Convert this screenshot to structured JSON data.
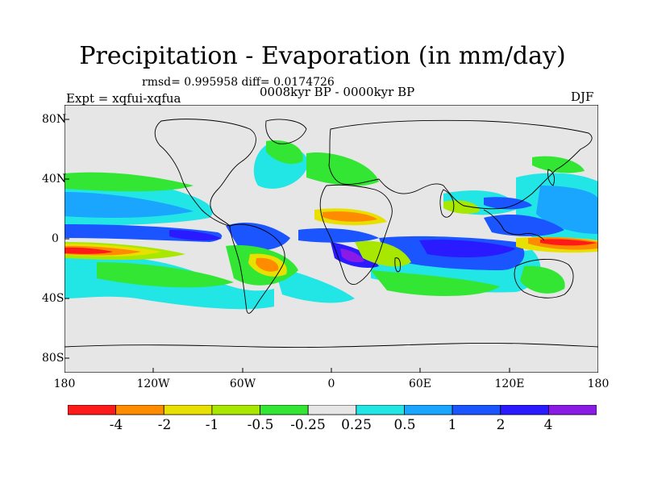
{
  "title": "Precipitation - Evaporation (in mm/day)",
  "stats": "rmsd= 0.995958  diff= 0.0174726",
  "experiment": "Expt = xqfui-xqfua",
  "period": "0008kyr BP - 0000kyr BP",
  "season": "DJF",
  "lat_labels": [
    "80N",
    "40N",
    "0",
    "40S",
    "80S"
  ],
  "lon_labels": [
    "180",
    "120W",
    "60W",
    "0",
    "60E",
    "120E",
    "180"
  ],
  "colorbar": {
    "labels": [
      "-4",
      "-2",
      "-1",
      "-0.5",
      "-0.25",
      "0.25",
      "0.5",
      "1",
      "2",
      "4"
    ],
    "colors": [
      "#ff1a1a",
      "#ff8c00",
      "#e8e000",
      "#a8e800",
      "#33e633",
      "#e6e6e6",
      "#22e5e5",
      "#1aa5ff",
      "#1a55ff",
      "#2a1aff",
      "#8a1ae6"
    ]
  },
  "colors": {
    "background": "#e6e6e6",
    "coast": "#000000"
  }
}
